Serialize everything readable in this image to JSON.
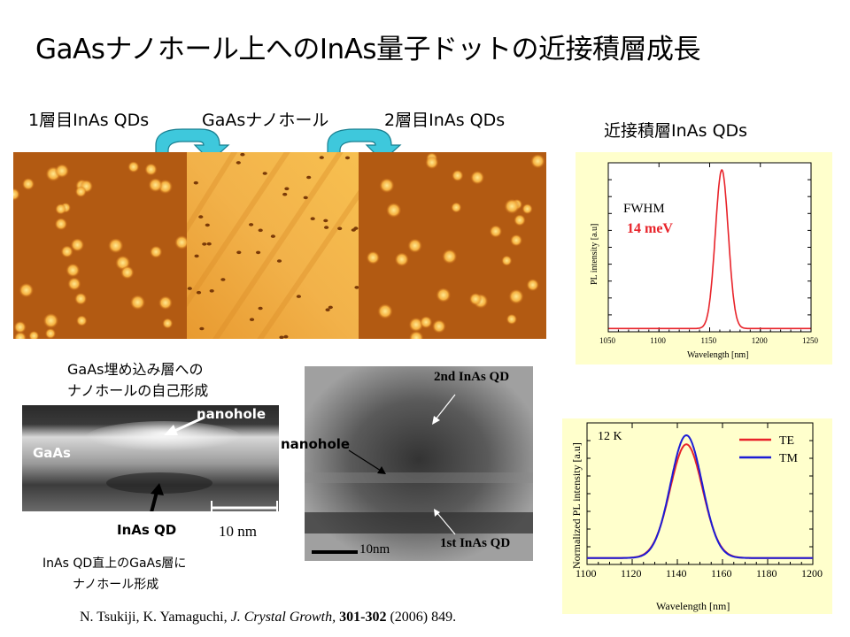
{
  "slide": {
    "title": "GaAsナノホール上へのInAs量子ドットの近接積層成長"
  },
  "afm": {
    "label1": "1層目InAs QDs",
    "label2": "GaAsナノホール",
    "label3": "2層目InAs QDs"
  },
  "stacked_label": "近接積層InAs QDs",
  "tem_left": {
    "caption_top_line1": "GaAs埋め込み層への",
    "caption_top_line2": "ナノホールの自己形成",
    "nanohole": "nanohole",
    "gaas": "GaAs",
    "inas_qd": "InAs QD",
    "scale": "10 nm",
    "caption_bottom_line1": "InAs QD直上のGaAs層に",
    "caption_bottom_line2": "ナノホール形成"
  },
  "tem_right": {
    "second_qd": "2nd InAs QD",
    "nanohole": "nanohole",
    "first_qd": "1st InAs QD",
    "scale": "10nm"
  },
  "reference": {
    "authors": "N. Tsukiji, K. Yamaguchi,",
    "journal": "J. Crystal Growth,",
    "volume": "301-302",
    "rest": "(2006) 849."
  },
  "colors": {
    "chart_bg": "#ffffcc",
    "red_line": "#e8232a",
    "blue_line": "#1c1cd6",
    "arrow_cyan": "#3ec8dc"
  },
  "chart_data": [
    {
      "type": "line",
      "title": "",
      "xlabel": "Wavelength [nm]",
      "ylabel": "PL intensity [a.u]",
      "xlim": [
        1050,
        1250
      ],
      "xticks": [
        "1050",
        "1100",
        "1150",
        "1200",
        "1250"
      ],
      "annotation_label": "FWHM",
      "annotation_value": "14 meV",
      "series": [
        {
          "name": "",
          "peak_x": 1162,
          "fwhm_nm": 15,
          "x": [
            1050,
            1100,
            1130,
            1145,
            1152,
            1156,
            1159,
            1162,
            1165,
            1168,
            1172,
            1180,
            1200,
            1250
          ],
          "y": [
            0.02,
            0.03,
            0.05,
            0.12,
            0.3,
            0.55,
            0.85,
            1.0,
            0.85,
            0.55,
            0.3,
            0.1,
            0.04,
            0.02
          ]
        }
      ]
    },
    {
      "type": "line",
      "title": "",
      "annotation": "12 K",
      "xlabel": "Wavelength [nm]",
      "ylabel": "Normalized PL intensity [a.u]",
      "xlim": [
        1100,
        1200
      ],
      "xticks": [
        "1100",
        "1120",
        "1140",
        "1160",
        "1180",
        "1200"
      ],
      "legend": "top-right",
      "series": [
        {
          "name": "TE",
          "color": "#e8232a",
          "peak_x": 1144,
          "width": 7.2,
          "peak": 0.93
        },
        {
          "name": "TM",
          "color": "#1c1cd6",
          "peak_x": 1144,
          "width": 7.0,
          "peak": 1.0
        }
      ]
    }
  ]
}
